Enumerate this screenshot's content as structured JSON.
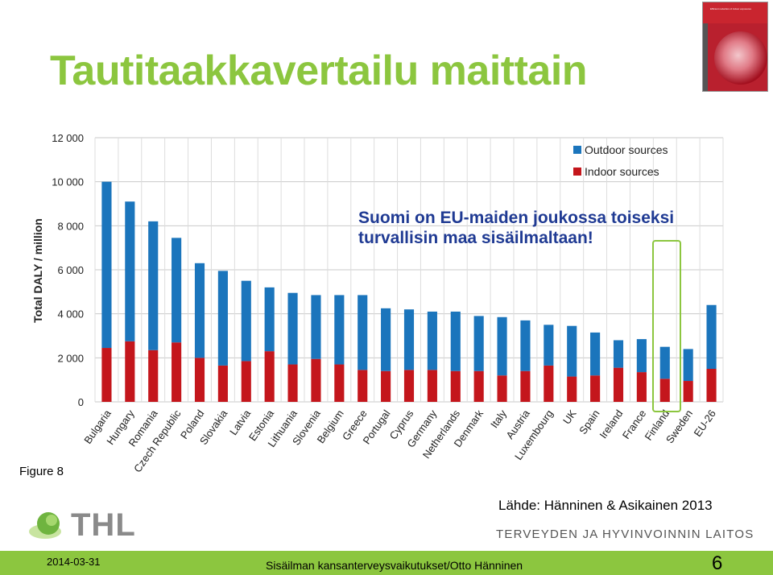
{
  "slide": {
    "title": "Tautitaakkavertailu maittain",
    "annotation_line1": "Suomi on EU-maiden joukossa toiseksi",
    "annotation_line2": "turvallisin maa sisäilmaltaan!",
    "figure_label": "Figure 8",
    "source": "Lähde: Hänninen & Asikainen 2013",
    "org_name": "TERVEYDEN JA HYVINVOINNIN LAITOS",
    "logo_text": "THL",
    "thumbnail_title": "Efficient reduction of indoor exposures"
  },
  "footer": {
    "date": "2014-03-31",
    "center_text": "Sisäilman kansanterveysvaikutukset/Otto Hänninen",
    "page_number": "6"
  },
  "colors": {
    "accent": "#8cc63f",
    "outdoor": "#1b75bc",
    "indoor": "#c4161c",
    "annotation": "#1f3a93"
  },
  "chart_data": {
    "type": "bar",
    "stacked": true,
    "ylabel": "Total DALY / million",
    "ylim": [
      0,
      12000
    ],
    "yticks": [
      0,
      2000,
      4000,
      6000,
      8000,
      10000,
      12000
    ],
    "ytick_labels": [
      "0",
      "2 000",
      "4 000",
      "6 000",
      "8 000",
      "10 000",
      "12 000"
    ],
    "grid": true,
    "legend": "top-right",
    "categories": [
      "Bulgaria",
      "Hungary",
      "Romania",
      "Czech Republic",
      "Poland",
      "Slovakia",
      "Latvia",
      "Estonia",
      "Lithuania",
      "Slovenia",
      "Belgium",
      "Greece",
      "Portugal",
      "Cyprus",
      "Germany",
      "Netherlands",
      "Denmark",
      "Italy",
      "Austria",
      "Luxembourg",
      "UK",
      "Spain",
      "Ireland",
      "France",
      "Finland",
      "Sweden",
      "EU-26"
    ],
    "series": [
      {
        "name": "Indoor sources",
        "values": [
          2450,
          2750,
          2350,
          2700,
          2000,
          1650,
          1850,
          2300,
          1700,
          1950,
          1700,
          1450,
          1400,
          1450,
          1450,
          1400,
          1400,
          1200,
          1400,
          1650,
          1150,
          1200,
          1550,
          1350,
          1050,
          950,
          1500
        ]
      },
      {
        "name": "Outdoor sources",
        "values": [
          7550,
          6350,
          5850,
          4750,
          4300,
          4300,
          3650,
          2900,
          3250,
          2900,
          3150,
          3400,
          2850,
          2750,
          2650,
          2700,
          2500,
          2650,
          2300,
          1850,
          2300,
          1950,
          1250,
          1500,
          1450,
          1450,
          2900
        ]
      }
    ]
  }
}
